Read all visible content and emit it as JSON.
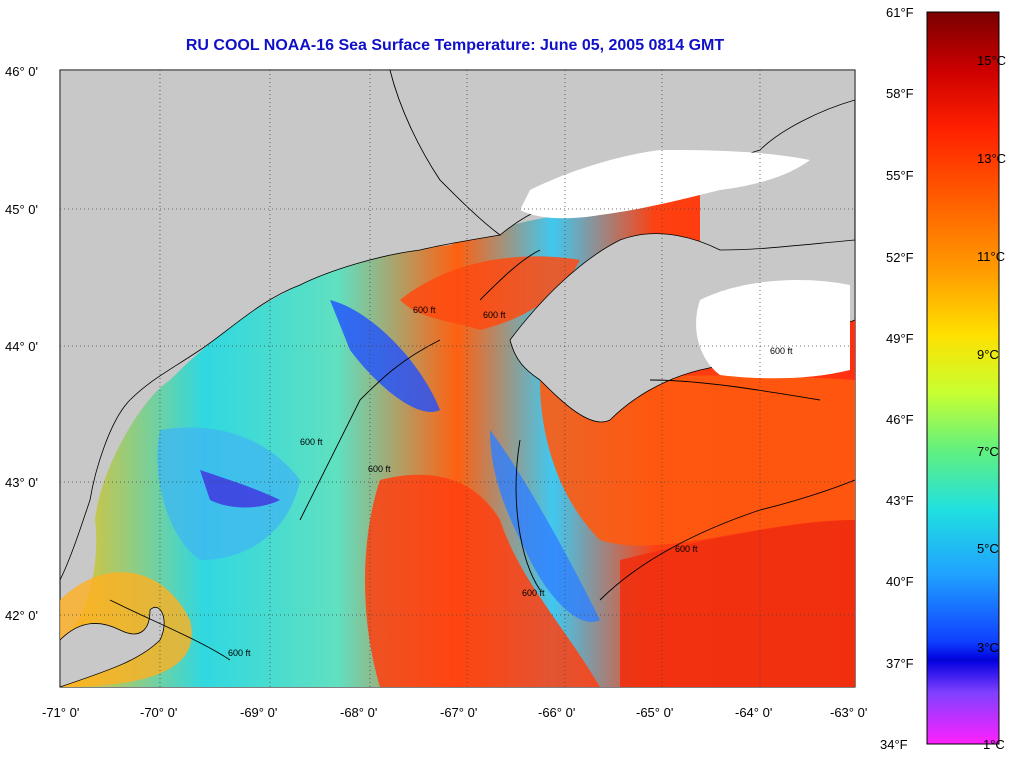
{
  "title": "RU COOL  NOAA-16  Sea Surface Temperature:  June 05, 2005 0814 GMT",
  "map": {
    "lat_labels": [
      "46° 0'",
      "45° 0'",
      "44° 0'",
      "43° 0'",
      "42° 0'"
    ],
    "lon_labels": [
      "-71° 0'",
      "-70° 0'",
      "-69° 0'",
      "-68° 0'",
      "-67° 0'",
      "-66° 0'",
      "-65° 0'",
      "-64° 0'",
      "-63° 0'"
    ],
    "contour_label": "600 ft",
    "land_color": "#c8c8c8",
    "cloud_color": "#ffffff"
  },
  "colorbar": {
    "fahrenheit_labels": [
      "61°F",
      "58°F",
      "55°F",
      "52°F",
      "49°F",
      "46°F",
      "43°F",
      "40°F",
      "37°F",
      "34°F"
    ],
    "celsius_labels": [
      "15°C",
      "13°C",
      "11°C",
      "9°C",
      "7°C",
      "5°C",
      "3°C",
      "1°C"
    ],
    "colors": [
      "#7a0000",
      "#cc0000",
      "#ff2000",
      "#ff6000",
      "#ffa000",
      "#ffe000",
      "#c8ff30",
      "#60f080",
      "#20e0e0",
      "#20a0ff",
      "#1040ff",
      "#0000e0",
      "#8040ff",
      "#ff20ff"
    ]
  }
}
